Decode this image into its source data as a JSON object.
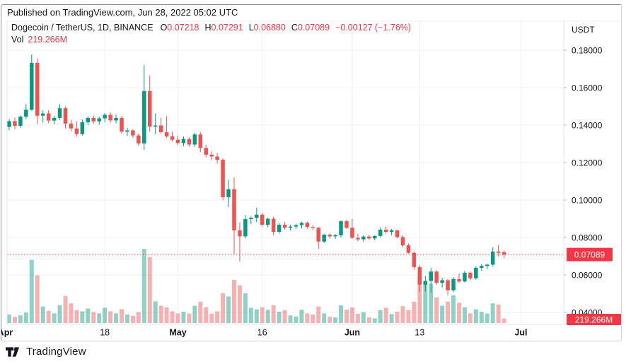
{
  "published_bar": {
    "text": "Published on TradingView.com, Jun 28, 2022 05:02 UTC"
  },
  "footer": {
    "brand": "TradingView"
  },
  "legend": {
    "symbol": "Dogecoin / TetherUS, 1D, BINANCE",
    "ohlc": [
      {
        "k": "O",
        "v": "0.07218"
      },
      {
        "k": "H",
        "v": "0.07291"
      },
      {
        "k": "L",
        "v": "0.06880"
      },
      {
        "k": "C",
        "v": "0.07089"
      }
    ],
    "change": "−0.00127 (−1.76%)",
    "vol_label": "Vol",
    "vol_value": "219.266M"
  },
  "axis": {
    "currency": "USDT",
    "price_badge": "0.07089",
    "volume_badge": "219.266M"
  },
  "colors": {
    "up": "#089981",
    "down": "#ef5350",
    "accent_red": "#f23645",
    "text": "#131722",
    "grid": "#eef0f5",
    "pane_border": "#e0e3eb",
    "tick": "#b7bac1",
    "badge_text": "#ffffff"
  },
  "chart_data": {
    "type": "candlestick",
    "title": "Dogecoin / TetherUS, 1D, BINANCE",
    "quote_currency": "USDT",
    "interval": "1D",
    "last_price": 0.07089,
    "last_volume": "219.266M",
    "price_line": 0.07089,
    "grid": true,
    "price_ticks": [
      {
        "value": 0.18,
        "label": "0.18000"
      },
      {
        "value": 0.16,
        "label": "0.16000"
      },
      {
        "value": 0.14,
        "label": "0.14000"
      },
      {
        "value": 0.12,
        "label": "0.12000"
      },
      {
        "value": 0.1,
        "label": "0.10000"
      },
      {
        "value": 0.08,
        "label": "0.08000"
      },
      {
        "value": 0.06,
        "label": "0.06000"
      },
      {
        "value": 0.04,
        "label": "0.04000"
      }
    ],
    "ylim_visible": [
      0.034,
      0.196
    ],
    "time_axis": [
      {
        "label": "Apr",
        "pos": -0.7,
        "major": true,
        "grid": false
      },
      {
        "label": "18",
        "pos": 17,
        "major": false,
        "grid": true
      },
      {
        "label": "May",
        "pos": 30,
        "major": true,
        "grid": true
      },
      {
        "label": "16",
        "pos": 45,
        "major": false,
        "grid": true
      },
      {
        "label": "Jun",
        "pos": 61,
        "major": true,
        "grid": true
      },
      {
        "label": "13",
        "pos": 73,
        "major": false,
        "grid": true
      },
      {
        "label": "Jul",
        "pos": 91,
        "major": true,
        "grid": true
      }
    ],
    "volume_unit": "M",
    "candles_ohlcv": [
      [
        0.139,
        0.1432,
        0.1372,
        0.1421,
        420
      ],
      [
        0.1421,
        0.144,
        0.1378,
        0.1396,
        310
      ],
      [
        0.1396,
        0.1452,
        0.1386,
        0.1445,
        380
      ],
      [
        0.1445,
        0.1512,
        0.1432,
        0.1482,
        520
      ],
      [
        0.1482,
        0.1778,
        0.1478,
        0.1732,
        3150
      ],
      [
        0.1732,
        0.1755,
        0.1405,
        0.145,
        2380
      ],
      [
        0.145,
        0.1478,
        0.1414,
        0.1462,
        820
      ],
      [
        0.1462,
        0.148,
        0.141,
        0.1424,
        610
      ],
      [
        0.1424,
        0.1448,
        0.1406,
        0.1438,
        480
      ],
      [
        0.1438,
        0.1512,
        0.1428,
        0.149,
        880
      ],
      [
        0.149,
        0.1498,
        0.1382,
        0.1408,
        1350
      ],
      [
        0.1408,
        0.1428,
        0.1368,
        0.1382,
        980
      ],
      [
        0.1382,
        0.142,
        0.1338,
        0.1352,
        640
      ],
      [
        0.1352,
        0.143,
        0.1345,
        0.1415,
        580
      ],
      [
        0.1415,
        0.1448,
        0.14,
        0.1438,
        720
      ],
      [
        0.1438,
        0.1452,
        0.1408,
        0.142,
        540
      ],
      [
        0.142,
        0.1445,
        0.1402,
        0.1436,
        480
      ],
      [
        0.1436,
        0.1465,
        0.1415,
        0.1455,
        760
      ],
      [
        0.1455,
        0.1468,
        0.1412,
        0.1425,
        580
      ],
      [
        0.1425,
        0.1455,
        0.141,
        0.1438,
        480
      ],
      [
        0.1438,
        0.1448,
        0.1352,
        0.1365,
        690
      ],
      [
        0.1365,
        0.1385,
        0.1342,
        0.1372,
        420
      ],
      [
        0.1372,
        0.1378,
        0.1332,
        0.1345,
        360
      ],
      [
        0.1345,
        0.1355,
        0.1288,
        0.1302,
        540
      ],
      [
        0.1302,
        0.172,
        0.1268,
        0.1582,
        3700
      ],
      [
        0.1582,
        0.1665,
        0.1365,
        0.1392,
        3280
      ],
      [
        0.1392,
        0.1462,
        0.1352,
        0.1398,
        1080
      ],
      [
        0.1398,
        0.1438,
        0.1355,
        0.1362,
        860
      ],
      [
        0.1362,
        0.1448,
        0.1332,
        0.134,
        780
      ],
      [
        0.134,
        0.1365,
        0.1312,
        0.1322,
        580
      ],
      [
        0.1322,
        0.1345,
        0.1295,
        0.1304,
        480
      ],
      [
        0.1304,
        0.134,
        0.1288,
        0.1326,
        560
      ],
      [
        0.1326,
        0.1335,
        0.1285,
        0.1296,
        470
      ],
      [
        0.1296,
        0.1358,
        0.1282,
        0.135,
        860
      ],
      [
        0.135,
        0.1362,
        0.1255,
        0.1278,
        1060
      ],
      [
        0.1278,
        0.1295,
        0.1228,
        0.1242,
        780
      ],
      [
        0.1242,
        0.126,
        0.1212,
        0.1232,
        460
      ],
      [
        0.1232,
        0.1252,
        0.1195,
        0.1215,
        580
      ],
      [
        0.1215,
        0.1222,
        0.0998,
        0.1015,
        1480
      ],
      [
        0.1015,
        0.1108,
        0.0962,
        0.1058,
        1320
      ],
      [
        0.1058,
        0.1122,
        0.0712,
        0.0838,
        2150
      ],
      [
        0.0838,
        0.088,
        0.0672,
        0.0806,
        1880
      ],
      [
        0.0806,
        0.092,
        0.0795,
        0.0898,
        1480
      ],
      [
        0.0898,
        0.0912,
        0.0872,
        0.0905,
        760
      ],
      [
        0.0905,
        0.0958,
        0.0882,
        0.0922,
        680
      ],
      [
        0.0922,
        0.0932,
        0.0858,
        0.0868,
        780
      ],
      [
        0.0868,
        0.0905,
        0.0855,
        0.09,
        660
      ],
      [
        0.09,
        0.091,
        0.0812,
        0.083,
        880
      ],
      [
        0.083,
        0.0878,
        0.082,
        0.0868,
        560
      ],
      [
        0.0868,
        0.0882,
        0.0842,
        0.0852,
        640
      ],
      [
        0.0852,
        0.0868,
        0.0838,
        0.0858,
        380
      ],
      [
        0.0858,
        0.0872,
        0.0845,
        0.0866,
        330
      ],
      [
        0.0866,
        0.0884,
        0.0848,
        0.0878,
        660
      ],
      [
        0.0878,
        0.0885,
        0.0848,
        0.0856,
        480
      ],
      [
        0.0856,
        0.0865,
        0.0838,
        0.0852,
        420
      ],
      [
        0.0852,
        0.0856,
        0.0738,
        0.0778,
        820
      ],
      [
        0.0778,
        0.082,
        0.077,
        0.0815,
        480
      ],
      [
        0.0815,
        0.0822,
        0.0795,
        0.0806,
        320
      ],
      [
        0.0806,
        0.0818,
        0.0792,
        0.0812,
        280
      ],
      [
        0.0812,
        0.089,
        0.08,
        0.0887,
        880
      ],
      [
        0.0887,
        0.0895,
        0.0845,
        0.0852,
        660
      ],
      [
        0.0852,
        0.09,
        0.0792,
        0.0798,
        780
      ],
      [
        0.0798,
        0.082,
        0.078,
        0.079,
        460
      ],
      [
        0.079,
        0.0812,
        0.0778,
        0.0805,
        540
      ],
      [
        0.0805,
        0.0815,
        0.0788,
        0.0795,
        280
      ],
      [
        0.0795,
        0.0812,
        0.0785,
        0.0808,
        230
      ],
      [
        0.0808,
        0.0852,
        0.08,
        0.0842,
        640
      ],
      [
        0.0842,
        0.0858,
        0.082,
        0.083,
        760
      ],
      [
        0.083,
        0.0845,
        0.0812,
        0.0838,
        450
      ],
      [
        0.0838,
        0.0842,
        0.0795,
        0.0802,
        560
      ],
      [
        0.0802,
        0.0812,
        0.0748,
        0.0758,
        840
      ],
      [
        0.0758,
        0.0768,
        0.0712,
        0.0718,
        640
      ],
      [
        0.0718,
        0.0725,
        0.0628,
        0.0642,
        1060
      ],
      [
        0.0642,
        0.0652,
        0.0508,
        0.0548,
        2280
      ],
      [
        0.0548,
        0.0595,
        0.0512,
        0.0568,
        1920
      ],
      [
        0.0568,
        0.0638,
        0.0502,
        0.0618,
        1960
      ],
      [
        0.0618,
        0.0625,
        0.0548,
        0.0558,
        1280
      ],
      [
        0.0558,
        0.0585,
        0.0532,
        0.0572,
        860
      ],
      [
        0.0572,
        0.0578,
        0.0492,
        0.0518,
        1060
      ],
      [
        0.0518,
        0.0588,
        0.0508,
        0.0578,
        1380
      ],
      [
        0.0578,
        0.0608,
        0.0558,
        0.0565,
        1010
      ],
      [
        0.0565,
        0.0622,
        0.056,
        0.0612,
        780
      ],
      [
        0.0612,
        0.0618,
        0.0572,
        0.0582,
        480
      ],
      [
        0.0582,
        0.0645,
        0.0575,
        0.0638,
        680
      ],
      [
        0.0638,
        0.0658,
        0.0622,
        0.0648,
        560
      ],
      [
        0.0648,
        0.0662,
        0.0632,
        0.0655,
        470
      ],
      [
        0.0655,
        0.0748,
        0.0645,
        0.0725,
        980
      ],
      [
        0.0725,
        0.076,
        0.0698,
        0.0718,
        920
      ],
      [
        0.07218,
        0.07291,
        0.0688,
        0.07089,
        219.266
      ]
    ]
  }
}
